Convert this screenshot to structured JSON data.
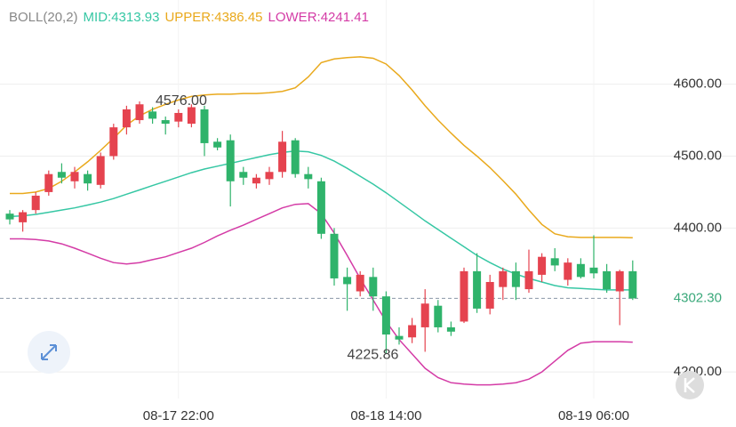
{
  "chart_data": {
    "type": "candlestick",
    "indicator": "BOLL(20,2)",
    "legend": [
      "MID:4313.93",
      "UPPER:4386.45",
      "LOWER:4241.41"
    ],
    "categories": [
      null,
      null,
      null,
      null,
      null,
      null,
      null,
      null,
      null,
      null,
      null,
      null,
      null,
      "08-17 22:00",
      null,
      null,
      null,
      null,
      null,
      null,
      null,
      null,
      null,
      null,
      null,
      null,
      null,
      null,
      null,
      "08-18 14:00",
      null,
      null,
      null,
      null,
      null,
      null,
      null,
      null,
      null,
      null,
      null,
      null,
      null,
      null,
      null,
      "08-19 06:00",
      null,
      null,
      null
    ],
    "open": [
      4420,
      4408,
      4425,
      4450,
      4478,
      4465,
      4475,
      4460,
      4500,
      4540,
      4550,
      4562,
      4550,
      4548,
      4545,
      4565,
      4520,
      4522,
      4478,
      4462,
      4468,
      4478,
      4522,
      4475,
      4465,
      4392,
      4332,
      4312,
      4332,
      4305,
      4250,
      4248,
      4262,
      4292,
      4262,
      4270,
      4340,
      4288,
      4318,
      4340,
      4315,
      4335,
      4358,
      4328,
      4350,
      4345,
      4340,
      4312,
      4340
    ],
    "high": [
      4425,
      4425,
      4450,
      4480,
      4490,
      4485,
      4480,
      4505,
      4545,
      4570,
      4576,
      4568,
      4555,
      4565,
      4572,
      4570,
      4525,
      4530,
      4485,
      4475,
      4485,
      4535,
      4525,
      4485,
      4470,
      4400,
      4345,
      4340,
      4345,
      4312,
      4262,
      4275,
      4315,
      4300,
      4270,
      4345,
      4365,
      4335,
      4345,
      4352,
      4370,
      4365,
      4372,
      4358,
      4358,
      4390,
      4350,
      4342,
      4355
    ],
    "low": [
      4405,
      4395,
      4420,
      4445,
      4462,
      4455,
      4452,
      4455,
      4495,
      4530,
      4545,
      4545,
      4530,
      4540,
      4540,
      4500,
      4508,
      4430,
      4460,
      4455,
      4460,
      4470,
      4470,
      4455,
      4385,
      4320,
      4285,
      4305,
      4285,
      4225.86,
      4238,
      4240,
      4228,
      4255,
      4250,
      4268,
      4282,
      4280,
      4300,
      4300,
      4310,
      4325,
      4340,
      4320,
      4330,
      4330,
      4310,
      4265,
      4300
    ],
    "close": [
      4412,
      4422,
      4445,
      4475,
      4470,
      4478,
      4462,
      4500,
      4540,
      4565,
      4572,
      4552,
      4545,
      4560,
      4568,
      4518,
      4512,
      4465,
      4470,
      4470,
      4478,
      4520,
      4475,
      4468,
      4392,
      4330,
      4322,
      4335,
      4305,
      4252,
      4245,
      4265,
      4295,
      4262,
      4256,
      4340,
      4288,
      4325,
      4340,
      4318,
      4340,
      4360,
      4348,
      4352,
      4332,
      4337,
      4315,
      4340,
      4302.3
    ],
    "up_color": "#e5434f",
    "down_color": "#2fb36b",
    "series": [
      {
        "name": "MID",
        "color": "#36c7a4",
        "values": [
          4416,
          4417,
          4419,
          4422,
          4425,
          4428,
          4432,
          4436,
          4441,
          4447,
          4453,
          4459,
          4465,
          4471,
          4477,
          4482,
          4486,
          4490,
          4494,
          4498,
          4502,
          4505,
          4507,
          4506,
          4501,
          4493,
          4483,
          4472,
          4461,
          4449,
          4436,
          4423,
          4410,
          4398,
          4386,
          4374,
          4362,
          4352,
          4343,
          4336,
          4330,
          4325,
          4320,
          4317,
          4316,
          4315,
          4314,
          4314,
          4313.93
        ]
      },
      {
        "name": "UPPER",
        "color": "#e9a91c",
        "values": [
          4448,
          4448,
          4450,
          4455,
          4465,
          4478,
          4492,
          4508,
          4525,
          4543,
          4556,
          4565,
          4572,
          4578,
          4583,
          4585,
          4586,
          4586,
          4587,
          4587,
          4588,
          4590,
          4595,
          4610,
          4630,
          4635,
          4637,
          4638,
          4636,
          4628,
          4612,
          4592,
          4570,
          4550,
          4532,
          4515,
          4500,
          4484,
          4466,
          4447,
          4425,
          4405,
          4392,
          4388,
          4387,
          4387,
          4387,
          4387,
          4386.45
        ]
      },
      {
        "name": "LOWER",
        "color": "#d43ba6",
        "values": [
          4385,
          4385,
          4384,
          4382,
          4378,
          4372,
          4365,
          4358,
          4352,
          4350,
          4352,
          4356,
          4360,
          4366,
          4372,
          4380,
          4389,
          4397,
          4404,
          4412,
          4420,
          4428,
          4433,
          4434,
          4420,
          4393,
          4362,
          4330,
          4300,
          4270,
          4245,
          4225,
          4205,
          4192,
          4185,
          4183,
          4182,
          4182,
          4183,
          4185,
          4190,
          4200,
          4215,
          4230,
          4240,
          4242,
          4242,
          4242,
          4241.41
        ]
      }
    ],
    "ylim": [
      4163,
      4717
    ],
    "yticks": [
      {
        "value": 4200,
        "label": "4200.00"
      },
      {
        "value": 4400,
        "label": "4400.00"
      },
      {
        "value": 4500,
        "label": "4500.00"
      },
      {
        "value": 4600,
        "label": "4600.00"
      }
    ],
    "grid": true,
    "max_label": {
      "value": 4576,
      "label": "4576.00"
    },
    "min_label": {
      "value": 4225.86,
      "label": "4225.86"
    },
    "last_price": {
      "value": 4302.3,
      "label": "4302.30"
    }
  }
}
